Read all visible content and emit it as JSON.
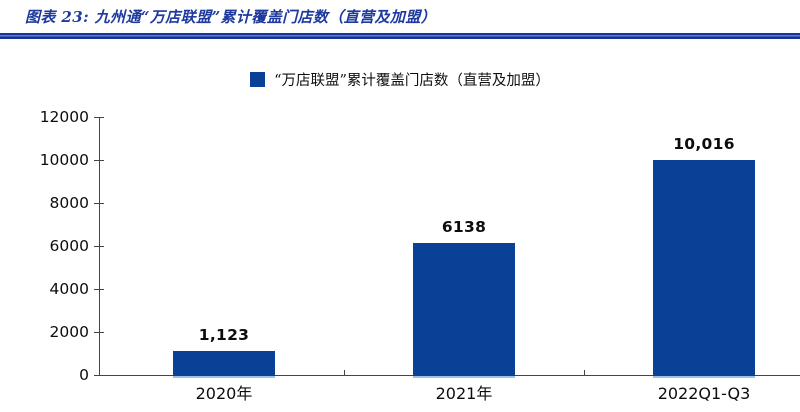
{
  "figure": {
    "title": "图表 23:  九州通“万店联盟”累计覆盖门店数（直营及加盟）"
  },
  "chart_data": {
    "type": "bar",
    "title": "“万店联盟”累计覆盖门店数（直营及加盟）",
    "legend": [
      "“万店联盟”累计覆盖门店数（直营及加盟）"
    ],
    "legend_position": "top",
    "categories": [
      "2020年",
      "2021年",
      "2022Q1-Q3"
    ],
    "values": [
      1123,
      6138,
      10016
    ],
    "value_labels": [
      "1,123",
      "6138",
      "10,016"
    ],
    "xlabel": "",
    "ylabel": "",
    "ylim": [
      0,
      12000
    ],
    "yticks": [
      0,
      2000,
      4000,
      6000,
      8000,
      10000,
      12000
    ],
    "grid": false,
    "bar_color": "#0a4196",
    "bar_bottom_edge_color": "#9cc2e5",
    "axis_color": "#454545",
    "title_color": "#1e3a9e",
    "rule_color": "#16349c"
  }
}
